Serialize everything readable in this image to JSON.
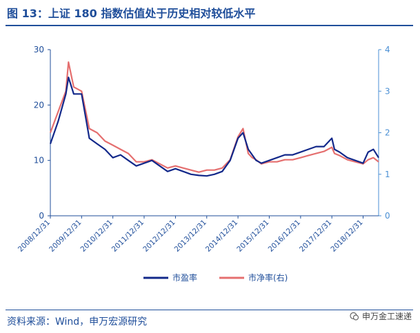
{
  "figure": {
    "title": "图 13：上证 180 指数估值处于历史相对较低水平",
    "source": "资料来源：Wind，申万宏源研究",
    "watermark": "申万金工速递",
    "watermark_icon": "wechat-icon"
  },
  "colors": {
    "axis_left": "#1f4e9a",
    "axis_right": "#4a8fd4",
    "pe": "#12288a",
    "pb": "#e56f6f"
  },
  "chart_data": {
    "type": "line",
    "x": [
      "2008/12/31",
      "2009/03/31",
      "2009/06/30",
      "2009/07/31",
      "2009/09/30",
      "2009/12/31",
      "2010/03/31",
      "2010/06/30",
      "2010/09/30",
      "2010/12/31",
      "2011/03/31",
      "2011/06/30",
      "2011/09/30",
      "2011/12/31",
      "2012/03/31",
      "2012/06/30",
      "2012/09/30",
      "2012/12/31",
      "2013/03/31",
      "2013/06/30",
      "2013/09/30",
      "2013/12/31",
      "2014/03/31",
      "2014/06/30",
      "2014/09/30",
      "2014/12/31",
      "2015/02/28",
      "2015/04/30",
      "2015/06/15",
      "2015/07/31",
      "2015/09/30",
      "2015/12/31",
      "2016/03/31",
      "2016/06/30",
      "2016/09/30",
      "2016/12/31",
      "2017/03/31",
      "2017/06/30",
      "2017/09/30",
      "2017/12/31",
      "2018/01/31",
      "2018/03/31",
      "2018/06/30",
      "2018/09/30",
      "2018/12/31",
      "2019/02/28",
      "2019/04/30",
      "2019/06/30"
    ],
    "x_ticks": [
      "2008/12/31",
      "2009/12/31",
      "2010/12/31",
      "2011/12/31",
      "2012/12/31",
      "2013/12/31",
      "2014/12/31",
      "2015/12/31",
      "2016/12/31",
      "2017/12/31",
      "2018/12/31"
    ],
    "series": [
      {
        "name": "市盈率",
        "axis": "left",
        "values": [
          13,
          17,
          22,
          25,
          22,
          22,
          14,
          13,
          12,
          10.5,
          11,
          10,
          9,
          9.5,
          10,
          9,
          8,
          8.5,
          8,
          7.5,
          7.3,
          7.2,
          7.5,
          8,
          10,
          14,
          15,
          12,
          11,
          10,
          9.5,
          10,
          10.5,
          11,
          11,
          11.5,
          12,
          12.5,
          12.5,
          14,
          12,
          11.5,
          10.5,
          10,
          9.5,
          11.5,
          12,
          10.5
        ]
      },
      {
        "name": "市净率(右)",
        "axis": "right",
        "values": [
          2.0,
          2.5,
          3.0,
          3.7,
          3.1,
          3.0,
          2.1,
          2.0,
          1.8,
          1.7,
          1.6,
          1.5,
          1.3,
          1.3,
          1.35,
          1.25,
          1.15,
          1.2,
          1.15,
          1.1,
          1.05,
          1.1,
          1.1,
          1.15,
          1.35,
          1.9,
          2.1,
          1.5,
          1.4,
          1.35,
          1.25,
          1.3,
          1.3,
          1.35,
          1.35,
          1.4,
          1.45,
          1.5,
          1.55,
          1.65,
          1.5,
          1.45,
          1.35,
          1.3,
          1.25,
          1.35,
          1.4,
          1.3
        ]
      }
    ],
    "left_axis": {
      "ylim": [
        0,
        30
      ],
      "ticks": [
        0,
        10,
        20,
        30
      ]
    },
    "right_axis": {
      "ylim": [
        0,
        4
      ],
      "ticks": [
        0,
        1,
        2,
        3,
        4
      ]
    },
    "legend": [
      "市盈率",
      "市净率(右)"
    ],
    "legend_position": "bottom-center",
    "grid": false
  }
}
